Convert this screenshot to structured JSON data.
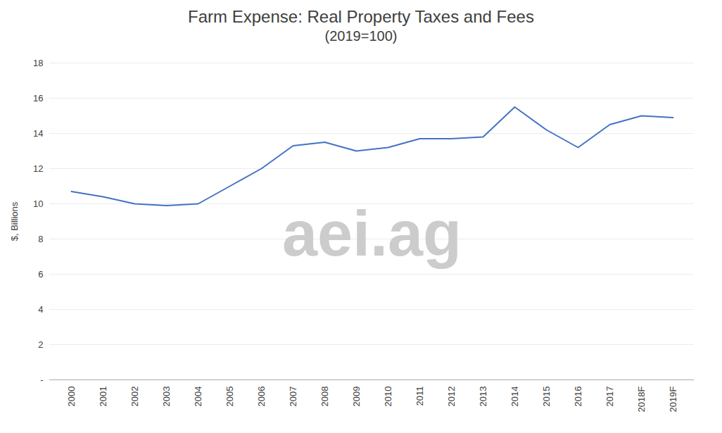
{
  "chart_data": {
    "type": "line",
    "title": "Farm Expense: Real Property Taxes and Fees",
    "subtitle": "(2019=100)",
    "y_label": "$, Billions",
    "annotations": [
      "aei.ag"
    ],
    "categories": [
      "2000",
      "2001",
      "2002",
      "2003",
      "2004",
      "2005",
      "2006",
      "2007",
      "2008",
      "2009",
      "2010",
      "2011",
      "2012",
      "2013",
      "2014",
      "2015",
      "2016",
      "2017",
      "2018F",
      "2019F"
    ],
    "values": [
      10.7,
      10.4,
      10.0,
      9.9,
      10.0,
      11.0,
      12.0,
      13.3,
      13.5,
      13.0,
      13.2,
      13.7,
      13.7,
      13.8,
      15.5,
      14.2,
      13.2,
      14.5,
      15.0,
      14.9
    ],
    "color": "#4472C4",
    "ylim": [
      0,
      18
    ],
    "yticks": [
      {
        "value": 0,
        "label": "-"
      },
      2,
      4,
      6,
      8,
      10,
      12,
      14,
      16,
      18
    ],
    "grid": true
  }
}
